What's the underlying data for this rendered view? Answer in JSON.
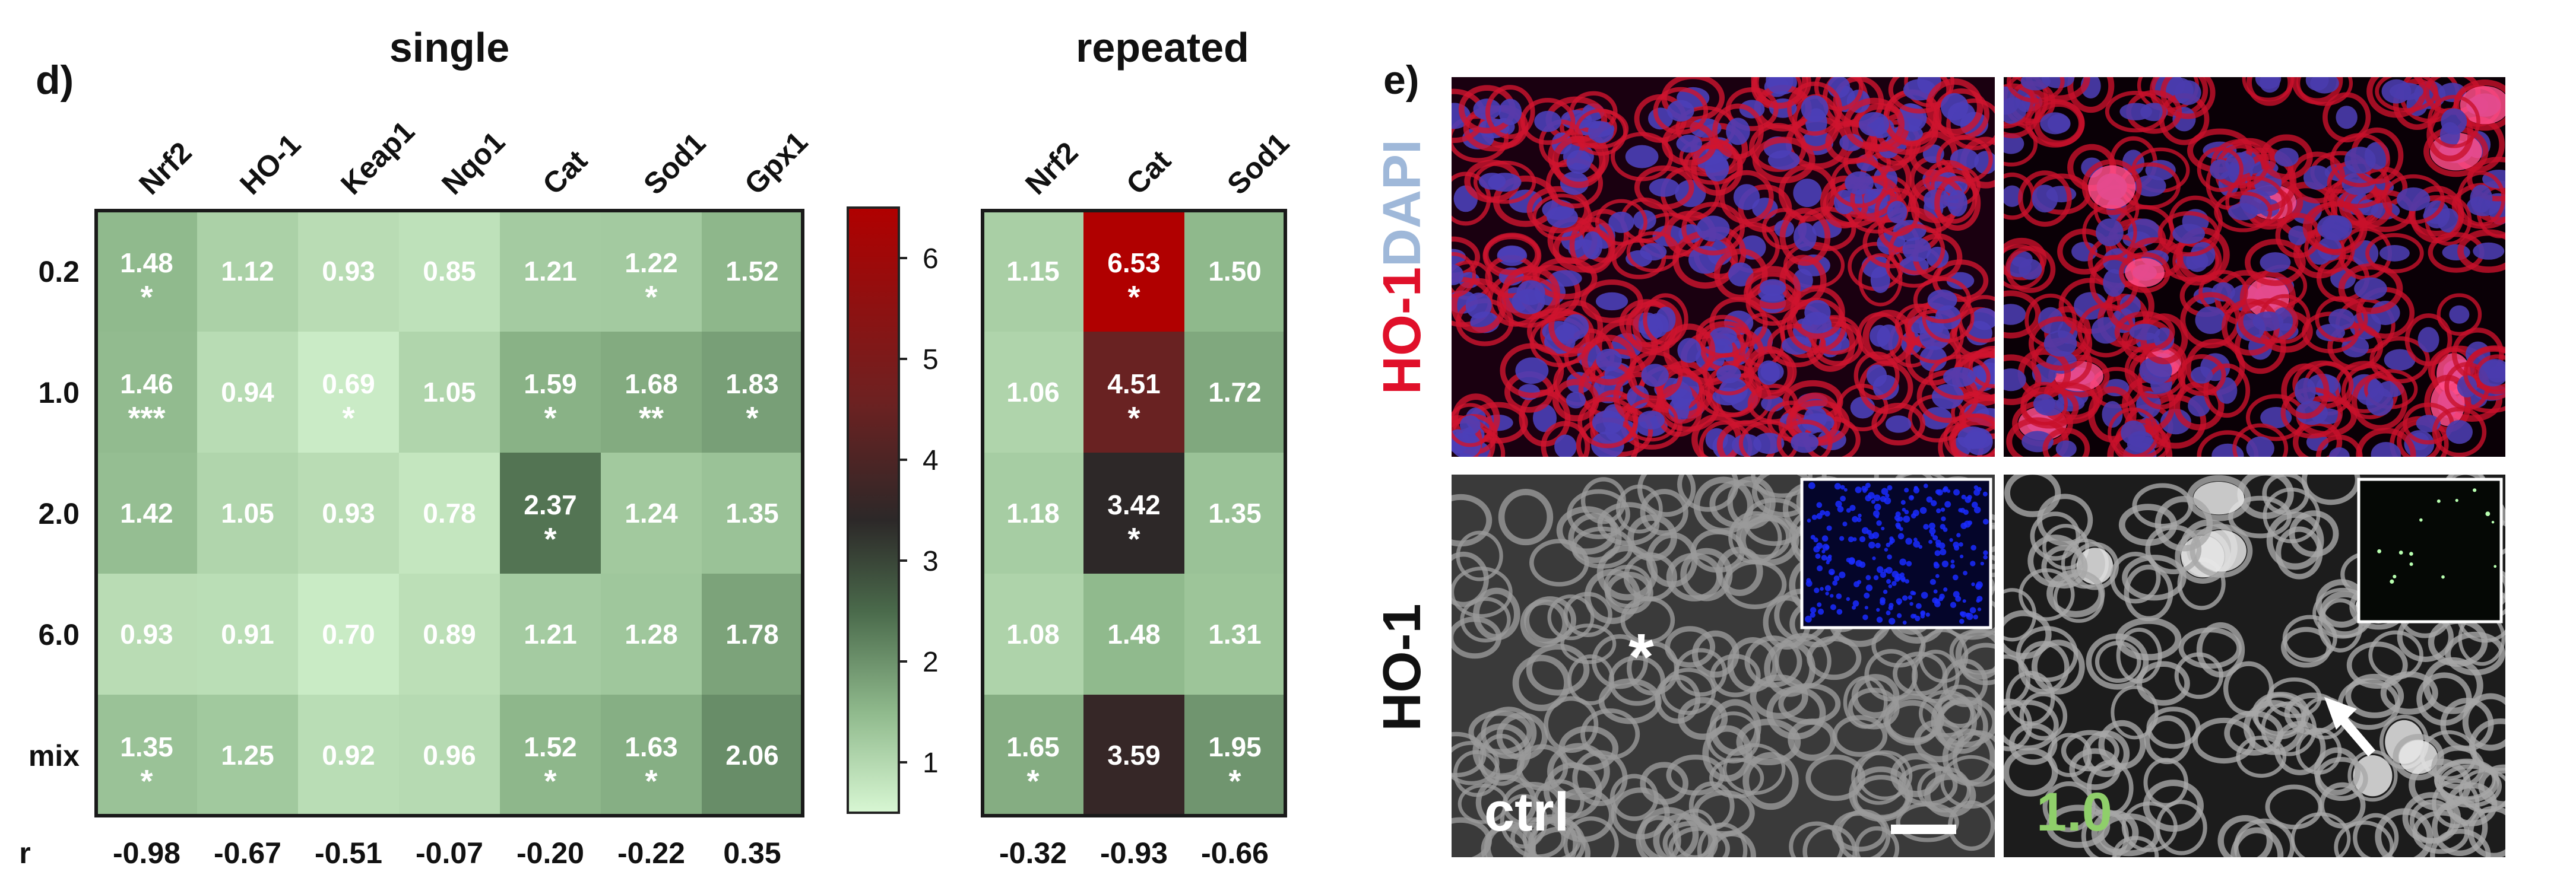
{
  "panels": {
    "d_label": "d)",
    "e_label": "e)"
  },
  "chart_data": [
    {
      "type": "heatmap",
      "title": "single",
      "columns": [
        "Nrf2",
        "HO-1",
        "Keap1",
        "Nqo1",
        "Cat",
        "Sod1",
        "Gpx1"
      ],
      "rows": [
        "0.2",
        "1.0",
        "2.0",
        "6.0",
        "mix"
      ],
      "values": [
        [
          1.48,
          1.12,
          0.93,
          0.85,
          1.21,
          1.22,
          1.52
        ],
        [
          1.46,
          0.94,
          0.69,
          1.05,
          1.59,
          1.68,
          1.83
        ],
        [
          1.42,
          1.05,
          0.93,
          0.78,
          2.37,
          1.24,
          1.35
        ],
        [
          0.93,
          0.91,
          0.7,
          0.89,
          1.21,
          1.28,
          1.78
        ],
        [
          1.35,
          1.25,
          0.92,
          0.96,
          1.52,
          1.63,
          2.06
        ]
      ],
      "labels": [
        [
          "1.48",
          "1.12",
          "0.93",
          "0.85",
          "1.21",
          "1.22",
          "1.52"
        ],
        [
          "1.46",
          "0.94",
          "0.69",
          "1.05",
          "1.59",
          "1.68",
          "1.83"
        ],
        [
          "1.42",
          "1.05",
          "0.93",
          "0.78",
          "2.37",
          "1.24",
          "1.35"
        ],
        [
          "0.93",
          "0.91",
          "0.70",
          "0.89",
          "1.21",
          "1.28",
          "1.78"
        ],
        [
          "1.35",
          "1.25",
          "0.92",
          "0.96",
          "1.52",
          "1.63",
          "2.06"
        ]
      ],
      "significance": [
        [
          "*",
          "",
          "",
          "",
          "",
          "*",
          ""
        ],
        [
          "***",
          "",
          "*",
          "",
          "*",
          "**",
          "*"
        ],
        [
          "",
          "",
          "",
          "",
          "*",
          "",
          ""
        ],
        [
          "",
          "",
          "",
          "",
          "",
          "",
          ""
        ],
        [
          "*",
          "",
          "",
          "",
          "*",
          "*",
          ""
        ]
      ],
      "correlation_label": "r",
      "r_labels": [
        "-0.98",
        "-0.67",
        "-0.51",
        "-0.07",
        "-0.20",
        "-0.22",
        "0.35"
      ]
    },
    {
      "type": "heatmap",
      "title": "repeated",
      "columns": [
        "Nrf2",
        "Cat",
        "Sod1"
      ],
      "rows": [
        "0.2",
        "1.0",
        "2.0",
        "6.0",
        "mix"
      ],
      "values": [
        [
          1.15,
          6.53,
          1.5
        ],
        [
          1.06,
          4.51,
          1.72
        ],
        [
          1.18,
          3.42,
          1.35
        ],
        [
          1.08,
          1.48,
          1.31
        ],
        [
          1.65,
          3.59,
          1.95
        ]
      ],
      "labels": [
        [
          "1.15",
          "6.53",
          "1.50"
        ],
        [
          "1.06",
          "4.51",
          "1.72"
        ],
        [
          "1.18",
          "3.42",
          "1.35"
        ],
        [
          "1.08",
          "1.48",
          "1.31"
        ],
        [
          "1.65",
          "3.59",
          "1.95"
        ]
      ],
      "significance": [
        [
          "",
          "*",
          ""
        ],
        [
          "",
          "*",
          ""
        ],
        [
          "",
          "*",
          ""
        ],
        [
          "",
          "",
          ""
        ],
        [
          "*",
          "",
          "*"
        ]
      ],
      "r_labels": [
        "-0.32",
        "-0.93",
        "-0.66"
      ]
    }
  ],
  "colorbar": {
    "ticks": [
      "1",
      "2",
      "3",
      "4",
      "5",
      "6"
    ],
    "tick_values": [
      1,
      2,
      3,
      4,
      5,
      6
    ],
    "range": [
      0.5,
      6.5
    ],
    "colormap": [
      {
        "v": 0.5,
        "color": "#d8f7d3"
      },
      {
        "v": 1.5,
        "color": "#8fb98c"
      },
      {
        "v": 2.5,
        "color": "#4a6a4b"
      },
      {
        "v": 3.4,
        "color": "#2c2828"
      },
      {
        "v": 4.6,
        "color": "#6e2121"
      },
      {
        "v": 6.5,
        "color": "#b00000"
      }
    ]
  },
  "micrographs": {
    "row_labels": {
      "top_ho1": "HO-1",
      "top_dapi": "DAPI",
      "bottom": "HO-1"
    },
    "ctrl_label": "ctrl",
    "treated_label": "1.0",
    "asterisk": "*",
    "colors": {
      "ho1_red": "#e0102a",
      "dapi_blue": "#9fb8d9",
      "treated_green": "#8fcf6a"
    }
  }
}
